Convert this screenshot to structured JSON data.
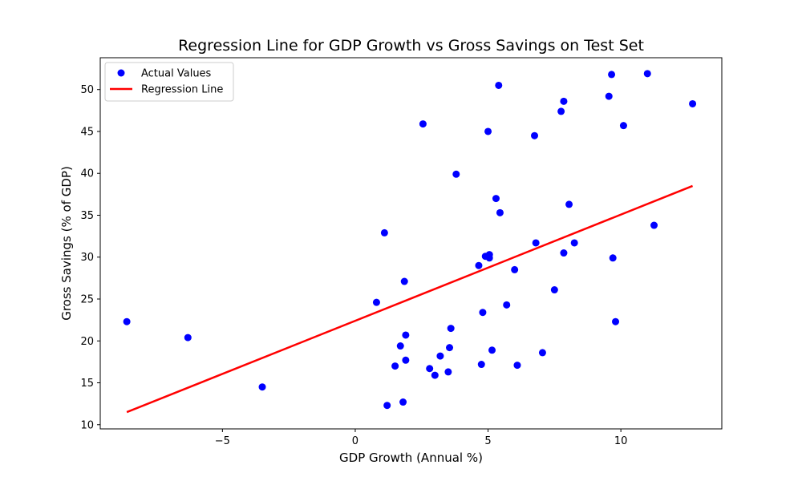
{
  "chart_data": {
    "type": "scatter",
    "title": "Regression Line for GDP Growth vs Gross Savings on Test Set",
    "xlabel": "GDP Growth (Annual %)",
    "ylabel": "Gross Savings (% of GDP)",
    "xlim": [
      -9.6,
      13.8
    ],
    "ylim": [
      9.5,
      53.8
    ],
    "xticks": [
      -5,
      0,
      5,
      10
    ],
    "yticks": [
      10,
      15,
      20,
      25,
      30,
      35,
      40,
      45,
      50
    ],
    "grid": false,
    "legend_position": "top-left",
    "series": [
      {
        "name": "Actual Values",
        "kind": "scatter",
        "color": "#0000ff",
        "points": [
          [
            -8.6,
            22.3
          ],
          [
            -6.3,
            20.4
          ],
          [
            -3.5,
            14.5
          ],
          [
            0.8,
            24.6
          ],
          [
            1.1,
            32.9
          ],
          [
            1.2,
            12.3
          ],
          [
            1.5,
            17.0
          ],
          [
            1.7,
            19.4
          ],
          [
            1.8,
            12.7
          ],
          [
            1.85,
            27.1
          ],
          [
            1.9,
            17.7
          ],
          [
            1.9,
            20.7
          ],
          [
            2.55,
            45.9
          ],
          [
            2.8,
            16.7
          ],
          [
            3.0,
            15.9
          ],
          [
            3.2,
            18.2
          ],
          [
            3.5,
            16.3
          ],
          [
            3.55,
            19.2
          ],
          [
            3.6,
            21.5
          ],
          [
            3.8,
            39.9
          ],
          [
            4.65,
            29.0
          ],
          [
            4.75,
            17.2
          ],
          [
            4.8,
            23.4
          ],
          [
            4.9,
            30.1
          ],
          [
            5.0,
            45.0
          ],
          [
            5.05,
            29.9
          ],
          [
            5.05,
            30.3
          ],
          [
            5.15,
            18.9
          ],
          [
            5.3,
            37.0
          ],
          [
            5.4,
            50.5
          ],
          [
            5.45,
            35.3
          ],
          [
            5.7,
            24.3
          ],
          [
            6.0,
            28.5
          ],
          [
            6.1,
            17.1
          ],
          [
            6.75,
            44.5
          ],
          [
            6.8,
            31.7
          ],
          [
            7.05,
            18.6
          ],
          [
            7.5,
            26.1
          ],
          [
            7.75,
            47.4
          ],
          [
            7.85,
            48.6
          ],
          [
            7.85,
            30.5
          ],
          [
            8.05,
            36.3
          ],
          [
            8.25,
            31.7
          ],
          [
            9.55,
            49.2
          ],
          [
            9.65,
            51.8
          ],
          [
            9.7,
            29.9
          ],
          [
            9.8,
            22.3
          ],
          [
            10.1,
            45.7
          ],
          [
            11.0,
            51.9
          ],
          [
            11.25,
            33.8
          ],
          [
            12.7,
            48.3
          ]
        ]
      },
      {
        "name": "Regression Line",
        "kind": "line",
        "color": "#ff0000",
        "points": [
          [
            -8.6,
            11.5
          ],
          [
            12.7,
            38.5
          ]
        ]
      }
    ]
  }
}
